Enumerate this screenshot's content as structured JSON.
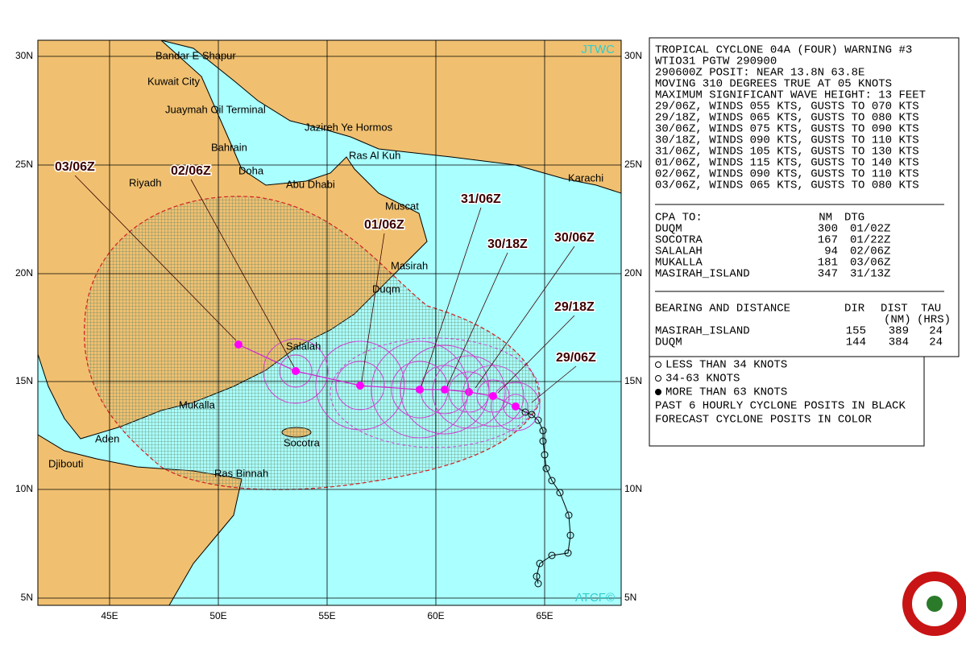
{
  "map": {
    "agency": "JTWC",
    "credit": "ATCF©",
    "lat_labels": [
      "30N",
      "25N",
      "20N",
      "15N",
      "10N",
      "5N"
    ],
    "lon_labels": [
      "45E",
      "50E",
      "55E",
      "60E",
      "65E"
    ],
    "places": [
      "Bandar E Shapur",
      "Kuwait City",
      "Juaymah Oil Terminal",
      "Jazireh Ye Hormos",
      "Bahrain",
      "Ras Al Kuh",
      "Doha",
      "Abu Dhabi",
      "Riyadh",
      "Karachi",
      "Muscat",
      "Masirah",
      "Duqm",
      "Salalah",
      "Mukalla",
      "Aden",
      "Socotra",
      "Djibouti",
      "Ras Binnah"
    ],
    "forecast_labels": [
      "29/06Z",
      "29/18Z",
      "30/06Z",
      "30/18Z",
      "31/06Z",
      "01/06Z",
      "02/06Z",
      "03/06Z"
    ]
  },
  "warning": {
    "lines": [
      "TROPICAL CYCLONE 04A (FOUR) WARNING #3",
      "WTIO31 PGTW 290900",
      "290600Z POSIT: NEAR 13.8N 63.8E",
      "MOVING 310 DEGREES TRUE AT 05 KNOTS",
      "MAXIMUM SIGNIFICANT WAVE HEIGHT: 13 FEET",
      "29/06Z, WINDS 055 KTS, GUSTS TO 070 KTS",
      "29/18Z, WINDS 065 KTS, GUSTS TO 080 KTS",
      "30/06Z, WINDS 075 KTS, GUSTS TO 090 KTS",
      "30/18Z, WINDS 090 KTS, GUSTS TO 110 KTS",
      "31/06Z, WINDS 105 KTS, GUSTS TO 130 KTS",
      "01/06Z, WINDS 115 KTS, GUSTS TO 140 KTS",
      "02/06Z, WINDS 090 KTS, GUSTS TO 110 KTS",
      "03/06Z, WINDS 065 KTS, GUSTS TO 080 KTS"
    ]
  },
  "cpa": {
    "header": [
      "CPA TO:",
      "NM",
      "DTG"
    ],
    "rows": [
      [
        "DUQM",
        "300",
        "01/02Z"
      ],
      [
        "SOCOTRA",
        "167",
        "01/22Z"
      ],
      [
        "SALALAH",
        "94",
        "02/06Z"
      ],
      [
        "MUKALLA",
        "181",
        "03/06Z"
      ],
      [
        "MASIRAH_ISLAND",
        "347",
        "31/13Z"
      ]
    ]
  },
  "bearing": {
    "header": [
      "BEARING AND DISTANCE",
      "DIR",
      "DIST",
      "TAU"
    ],
    "units": [
      "(NM)",
      "(HRS)"
    ],
    "rows": [
      [
        "MASIRAH_ISLAND",
        "155",
        "389",
        "24"
      ],
      [
        "DUQM",
        "144",
        "384",
        "24"
      ]
    ]
  },
  "legend": [
    "LESS THAN 34 KNOTS",
    "34-63 KNOTS",
    "MORE THAN 63 KNOTS",
    "PAST 6 HOURLY CYCLONE POSITS IN BLACK",
    "FORECAST CYCLONE POSITS IN COLOR"
  ]
}
